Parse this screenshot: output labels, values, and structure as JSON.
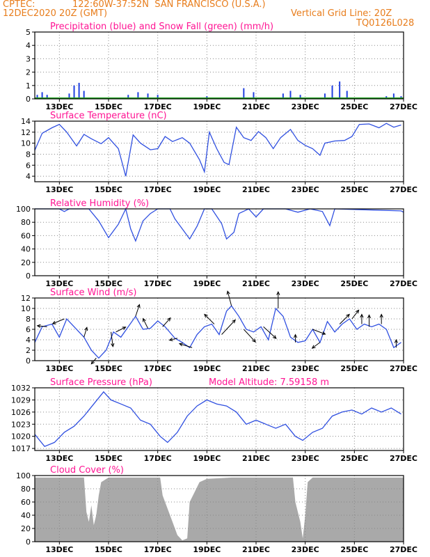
{
  "header": {
    "source": "CPTEC:",
    "location": "122:60W-37:52N  SAN FRANCISCO (U.S.A.)",
    "datetime": "12DEC2020 20Z (GMT)",
    "grid_line": "Vertical Grid Line: 20Z",
    "code": "TQ0126L028"
  },
  "colors": {
    "header": "#e87d1c",
    "title": "#ff1493",
    "line": "#2f4fe0",
    "precip": "#1f3fe0",
    "snow": "#1fa01f",
    "cloud": "#a9a9a9"
  },
  "chart_data": [
    {
      "type": "bar",
      "title": "Precipitation (blue) and Snow Fall (green) (mm/h)",
      "ylim": [
        0,
        5
      ],
      "yticks": [
        0,
        1,
        2,
        3,
        4,
        5
      ],
      "x_dates": [
        "13DEC",
        "15DEC",
        "17DEC",
        "19DEC",
        "21DEC",
        "23DEC",
        "25DEC",
        "27DEC"
      ],
      "series": [
        {
          "name": "Precipitation",
          "values": [
            {
              "x": 12.1,
              "y": 0.3
            },
            {
              "x": 12.3,
              "y": 0.5
            },
            {
              "x": 12.5,
              "y": 0.3
            },
            {
              "x": 13.4,
              "y": 0.4
            },
            {
              "x": 13.6,
              "y": 1.0
            },
            {
              "x": 13.8,
              "y": 1.2
            },
            {
              "x": 14.0,
              "y": 0.6
            },
            {
              "x": 15.8,
              "y": 0.3
            },
            {
              "x": 16.2,
              "y": 0.5
            },
            {
              "x": 16.6,
              "y": 0.4
            },
            {
              "x": 17.0,
              "y": 0.3
            },
            {
              "x": 19.0,
              "y": 0.2
            },
            {
              "x": 20.5,
              "y": 0.8
            },
            {
              "x": 20.9,
              "y": 0.5
            },
            {
              "x": 22.1,
              "y": 0.4
            },
            {
              "x": 22.4,
              "y": 0.6
            },
            {
              "x": 22.8,
              "y": 0.3
            },
            {
              "x": 23.8,
              "y": 0.4
            },
            {
              "x": 24.1,
              "y": 1.0
            },
            {
              "x": 24.4,
              "y": 1.3
            },
            {
              "x": 24.7,
              "y": 0.6
            },
            {
              "x": 26.3,
              "y": 0.2
            },
            {
              "x": 26.6,
              "y": 0.4
            },
            {
              "x": 26.9,
              "y": 0.2
            }
          ]
        },
        {
          "name": "Snow Fall",
          "values": []
        }
      ]
    },
    {
      "type": "line",
      "title": "Surface Temperature (nC)",
      "ylim": [
        3,
        14
      ],
      "yticks": [
        4,
        6,
        8,
        10,
        12,
        14
      ],
      "x_dates": [
        "13DEC",
        "15DEC",
        "17DEC",
        "19DEC",
        "21DEC",
        "23DEC",
        "25DEC",
        "27DEC"
      ],
      "points": [
        [
          12,
          8.7
        ],
        [
          12.3,
          11.8
        ],
        [
          12.7,
          12.8
        ],
        [
          13.0,
          13.4
        ],
        [
          13.3,
          12
        ],
        [
          13.7,
          9.5
        ],
        [
          14.0,
          11.6
        ],
        [
          14.3,
          10.8
        ],
        [
          14.7,
          9.9
        ],
        [
          15.0,
          11.0
        ],
        [
          15.4,
          9.0
        ],
        [
          15.7,
          4.0
        ],
        [
          16.0,
          11.5
        ],
        [
          16.3,
          10.0
        ],
        [
          16.7,
          8.8
        ],
        [
          17.0,
          9.0
        ],
        [
          17.3,
          11.2
        ],
        [
          17.6,
          10.3
        ],
        [
          18.0,
          11.0
        ],
        [
          18.3,
          10.0
        ],
        [
          18.7,
          7.0
        ],
        [
          18.9,
          4.8
        ],
        [
          19.1,
          12.0
        ],
        [
          19.4,
          9.0
        ],
        [
          19.7,
          6.5
        ],
        [
          19.9,
          6.1
        ],
        [
          20.2,
          12.9
        ],
        [
          20.5,
          11.0
        ],
        [
          20.8,
          10.5
        ],
        [
          21.1,
          12.1
        ],
        [
          21.4,
          11.0
        ],
        [
          21.7,
          9.0
        ],
        [
          22.0,
          11.0
        ],
        [
          22.4,
          12.5
        ],
        [
          22.7,
          10.5
        ],
        [
          23.0,
          9.6
        ],
        [
          23.3,
          9.0
        ],
        [
          23.6,
          7.8
        ],
        [
          23.8,
          10.0
        ],
        [
          24.2,
          10.4
        ],
        [
          24.6,
          10.5
        ],
        [
          24.9,
          11.2
        ],
        [
          25.2,
          13.4
        ],
        [
          25.6,
          13.5
        ],
        [
          26.0,
          12.8
        ],
        [
          26.3,
          13.6
        ],
        [
          26.6,
          12.9
        ],
        [
          26.9,
          13.3
        ]
      ]
    },
    {
      "type": "line",
      "title": "Relative Humidity (%)",
      "ylim": [
        0,
        100
      ],
      "yticks": [
        0,
        20,
        40,
        60,
        80,
        100
      ],
      "x_dates": [
        "13DEC",
        "15DEC",
        "17DEC",
        "19DEC",
        "21DEC",
        "23DEC",
        "25DEC",
        "27DEC"
      ],
      "points": [
        [
          12,
          100
        ],
        [
          13.0,
          100
        ],
        [
          13.2,
          96
        ],
        [
          13.4,
          100
        ],
        [
          14.2,
          100
        ],
        [
          14.6,
          82
        ],
        [
          15.0,
          57
        ],
        [
          15.4,
          77
        ],
        [
          15.7,
          100
        ],
        [
          15.9,
          70
        ],
        [
          16.1,
          52
        ],
        [
          16.4,
          82
        ],
        [
          16.7,
          93
        ],
        [
          17.0,
          100
        ],
        [
          17.5,
          100
        ],
        [
          17.7,
          85
        ],
        [
          18.0,
          70
        ],
        [
          18.3,
          55
        ],
        [
          18.6,
          74
        ],
        [
          18.9,
          100
        ],
        [
          19.2,
          100
        ],
        [
          19.6,
          78
        ],
        [
          19.8,
          55
        ],
        [
          20.1,
          65
        ],
        [
          20.3,
          93
        ],
        [
          20.7,
          100
        ],
        [
          21.0,
          88
        ],
        [
          21.3,
          100
        ],
        [
          21.8,
          100
        ],
        [
          22.2,
          100
        ],
        [
          22.7,
          95
        ],
        [
          23.2,
          100
        ],
        [
          23.7,
          96
        ],
        [
          24.0,
          75
        ],
        [
          24.2,
          100
        ],
        [
          26.9,
          97
        ],
        [
          27.0,
          95
        ]
      ]
    },
    {
      "type": "line",
      "title": "Surface Wind (m/s)",
      "ylim": [
        0,
        12
      ],
      "yticks": [
        0,
        2,
        4,
        6,
        8,
        10,
        12
      ],
      "x_dates": [
        "13DEC",
        "15DEC",
        "17DEC",
        "19DEC",
        "21DEC",
        "23DEC",
        "25DEC",
        "27DEC"
      ],
      "points": [
        [
          12,
          3.5
        ],
        [
          12.3,
          6.5
        ],
        [
          12.7,
          7.0
        ],
        [
          13.0,
          4.5
        ],
        [
          13.3,
          8.0
        ],
        [
          13.6,
          6.5
        ],
        [
          14.0,
          4.5
        ],
        [
          14.3,
          2.0
        ],
        [
          14.6,
          0.5
        ],
        [
          14.9,
          2.0
        ],
        [
          15.2,
          5.5
        ],
        [
          15.5,
          4.5
        ],
        [
          15.8,
          6.5
        ],
        [
          16.1,
          8.5
        ],
        [
          16.4,
          6.0
        ],
        [
          16.7,
          6.2
        ],
        [
          17.0,
          7.6
        ],
        [
          17.3,
          6.5
        ],
        [
          17.7,
          4.3
        ],
        [
          18.0,
          3.5
        ],
        [
          18.3,
          2.5
        ],
        [
          18.6,
          5.0
        ],
        [
          18.9,
          6.5
        ],
        [
          19.2,
          7.0
        ],
        [
          19.5,
          5.0
        ],
        [
          19.8,
          9.5
        ],
        [
          20.0,
          10.5
        ],
        [
          20.3,
          8.5
        ],
        [
          20.6,
          6.0
        ],
        [
          20.9,
          5.5
        ],
        [
          21.2,
          6.5
        ],
        [
          21.5,
          4.0
        ],
        [
          21.8,
          10.0
        ],
        [
          22.1,
          8.5
        ],
        [
          22.4,
          4.5
        ],
        [
          22.7,
          3.5
        ],
        [
          23.0,
          3.8
        ],
        [
          23.3,
          6.0
        ],
        [
          23.6,
          3.5
        ],
        [
          23.9,
          7.5
        ],
        [
          24.2,
          5.5
        ],
        [
          24.5,
          7.0
        ],
        [
          24.8,
          8.0
        ],
        [
          25.1,
          6.0
        ],
        [
          25.4,
          7.0
        ],
        [
          25.7,
          6.5
        ],
        [
          26.0,
          7.0
        ],
        [
          26.3,
          6.0
        ],
        [
          26.6,
          2.5
        ],
        [
          26.9,
          3.5
        ]
      ],
      "vectors": [
        [
          12.5,
          -1.0,
          0.1
        ],
        [
          13.2,
          -1.2,
          -0.5
        ],
        [
          14.0,
          0.3,
          1.0
        ],
        [
          14.5,
          -0.5,
          -0.6
        ],
        [
          15.1,
          0.2,
          -1.5
        ],
        [
          15.3,
          1.0,
          0.5
        ],
        [
          16.1,
          0.4,
          1.2
        ],
        [
          16.6,
          -0.5,
          1.0
        ],
        [
          17.2,
          0.8,
          0.9
        ],
        [
          17.8,
          -0.8,
          -0.2
        ],
        [
          18.4,
          -1.3,
          0.4
        ],
        [
          19.3,
          -1.0,
          1.0
        ],
        [
          19.6,
          1.4,
          1.5
        ],
        [
          20.0,
          -0.4,
          1.5
        ],
        [
          20.5,
          1.2,
          -1.3
        ],
        [
          21.3,
          1.3,
          -1.2
        ],
        [
          21.9,
          0,
          1.7
        ],
        [
          22.6,
          0,
          0.8
        ],
        [
          23.3,
          1.3,
          -0.5
        ],
        [
          23.6,
          -0.8,
          -0.6
        ],
        [
          24.4,
          1.0,
          1.0
        ],
        [
          24.9,
          0.7,
          0.9
        ],
        [
          25.3,
          0,
          1.0
        ],
        [
          25.6,
          0,
          1.2
        ],
        [
          26.1,
          0,
          1.0
        ],
        [
          26.7,
          0,
          0.8
        ]
      ]
    },
    {
      "type": "line",
      "title": "Surface Pressure (hPa)",
      "subtitle": "Model Altitude: 7.59158 m",
      "ylim": [
        1016.5,
        1032
      ],
      "yticks": [
        1017,
        1020,
        1023,
        1026,
        1029,
        1032
      ],
      "x_dates": [
        "13DEC",
        "15DEC",
        "17DEC",
        "19DEC",
        "21DEC",
        "23DEC",
        "25DEC",
        "27DEC"
      ],
      "points": [
        [
          12,
          1020.5
        ],
        [
          12.4,
          1017.5
        ],
        [
          12.8,
          1018.5
        ],
        [
          13.2,
          1021
        ],
        [
          13.6,
          1022.5
        ],
        [
          14.0,
          1025
        ],
        [
          14.4,
          1028
        ],
        [
          14.8,
          1031
        ],
        [
          15.1,
          1029
        ],
        [
          15.5,
          1028
        ],
        [
          15.9,
          1027
        ],
        [
          16.3,
          1024
        ],
        [
          16.7,
          1023
        ],
        [
          17.1,
          1020
        ],
        [
          17.4,
          1018.5
        ],
        [
          17.8,
          1021
        ],
        [
          18.2,
          1025
        ],
        [
          18.6,
          1027.5
        ],
        [
          19.0,
          1029
        ],
        [
          19.4,
          1028
        ],
        [
          19.8,
          1027.5
        ],
        [
          20.2,
          1026
        ],
        [
          20.6,
          1023
        ],
        [
          21.0,
          1024
        ],
        [
          21.4,
          1023
        ],
        [
          21.8,
          1022
        ],
        [
          22.2,
          1023
        ],
        [
          22.6,
          1020
        ],
        [
          22.9,
          1019
        ],
        [
          23.3,
          1021
        ],
        [
          23.7,
          1022
        ],
        [
          24.1,
          1025
        ],
        [
          24.5,
          1026
        ],
        [
          24.9,
          1026.5
        ],
        [
          25.3,
          1025.5
        ],
        [
          25.7,
          1027
        ],
        [
          26.1,
          1026
        ],
        [
          26.5,
          1027
        ],
        [
          26.9,
          1025.5
        ]
      ]
    },
    {
      "type": "area",
      "title": "Cloud Cover (%)",
      "ylim": [
        0,
        100
      ],
      "yticks": [
        0,
        20,
        40,
        60,
        80,
        100
      ],
      "x_dates": [
        "13DEC",
        "15DEC",
        "17DEC",
        "19DEC",
        "21DEC",
        "23DEC",
        "25DEC",
        "27DEC"
      ],
      "points": [
        [
          12,
          97
        ],
        [
          14.0,
          97
        ],
        [
          14.1,
          45
        ],
        [
          14.2,
          30
        ],
        [
          14.3,
          55
        ],
        [
          14.4,
          25
        ],
        [
          14.5,
          40
        ],
        [
          14.6,
          70
        ],
        [
          14.7,
          90
        ],
        [
          15.0,
          97
        ],
        [
          17.1,
          97
        ],
        [
          17.2,
          70
        ],
        [
          17.4,
          50
        ],
        [
          17.6,
          30
        ],
        [
          17.8,
          10
        ],
        [
          18.0,
          2
        ],
        [
          18.2,
          5
        ],
        [
          18.3,
          60
        ],
        [
          18.5,
          75
        ],
        [
          18.7,
          90
        ],
        [
          19.0,
          95
        ],
        [
          20.0,
          97
        ],
        [
          22.5,
          97
        ],
        [
          22.6,
          60
        ],
        [
          22.8,
          30
        ],
        [
          22.9,
          5
        ],
        [
          23.0,
          40
        ],
        [
          23.1,
          90
        ],
        [
          23.3,
          97
        ],
        [
          27,
          97
        ]
      ]
    }
  ]
}
